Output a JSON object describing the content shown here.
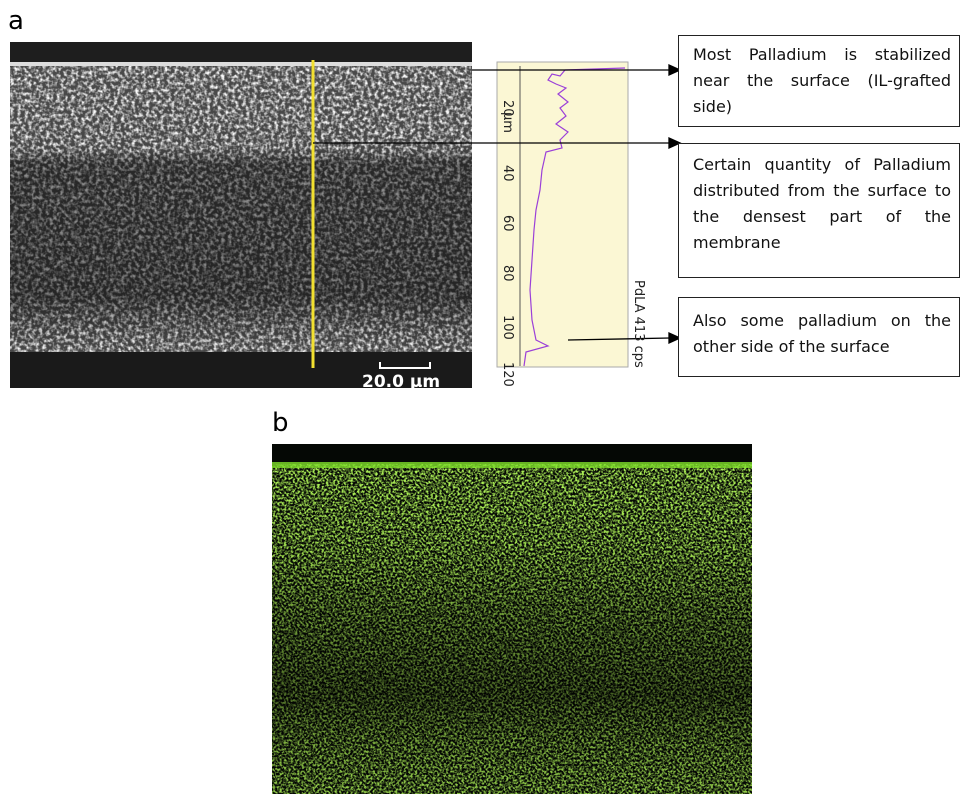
{
  "panel_a": {
    "label": "a",
    "scale_bar": "20.0 µm",
    "line_scan": {
      "unit": "µm",
      "ticks": [
        20,
        40,
        60,
        80,
        100,
        120
      ],
      "signal": "PdLA 413 cps"
    },
    "annotations": [
      "Most Palladium is stabilized near the surface (IL-grafted side)",
      "Certain quantity of Palladium distributed from the surface to the densest part of the membrane",
      "Also some palladium on the other side of the surface"
    ]
  },
  "panel_b": {
    "label": "b"
  }
}
